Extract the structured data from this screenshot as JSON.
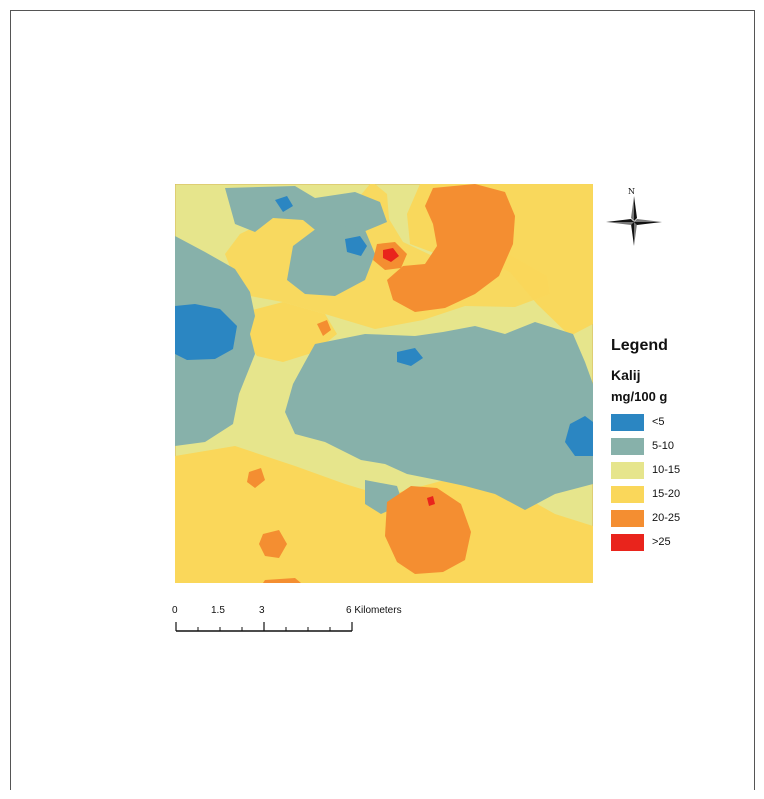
{
  "legend": {
    "title": "Legend",
    "layer": "Kalij",
    "units": "mg/100 g",
    "classes": [
      {
        "label": "<5",
        "color": "#2b86c2"
      },
      {
        "label": "5-10",
        "color": "#87b1aa"
      },
      {
        "label": "10-15",
        "color": "#e6e58c"
      },
      {
        "label": "15-20",
        "color": "#fad75a"
      },
      {
        "label": "20-25",
        "color": "#f48e31"
      },
      {
        "label": ">25",
        "color": "#e9241c"
      }
    ]
  },
  "north_arrow": {
    "label": "N"
  },
  "scale_bar": {
    "ticks": [
      "0",
      "1.5",
      "3",
      "6 Kilometers"
    ]
  }
}
